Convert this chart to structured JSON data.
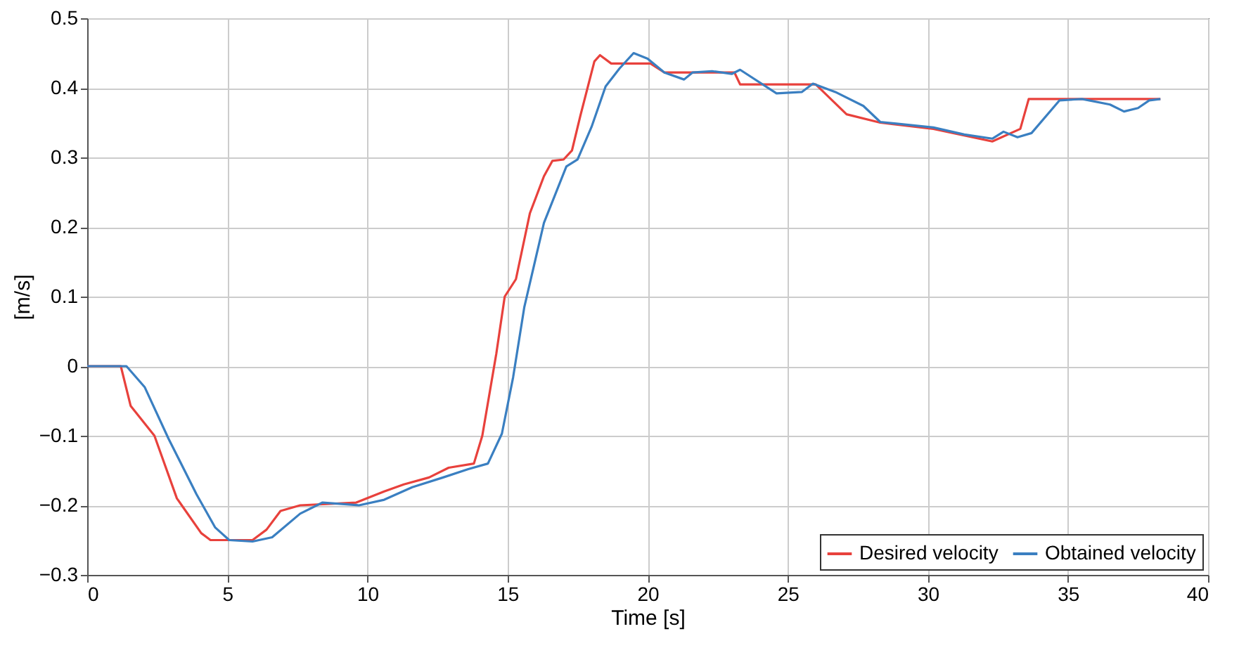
{
  "chart_data": {
    "type": "line",
    "xlabel": "Time [s]",
    "ylabel": "[m/s]",
    "xlim": [
      0,
      40
    ],
    "ylim": [
      -0.3,
      0.5
    ],
    "xticks": [
      0,
      5,
      10,
      15,
      20,
      25,
      30,
      35,
      40
    ],
    "yticks": [
      -0.3,
      -0.2,
      -0.1,
      0,
      0.1,
      0.2,
      0.3,
      0.4,
      0.5
    ],
    "grid": true,
    "legend": "bottom right",
    "line_style": "solid",
    "marker": "none",
    "series": [
      {
        "name": "Desired velocity",
        "color": "#e8413c",
        "x": [
          0,
          1.2,
          1.55,
          2.4,
          3.2,
          4.07,
          4.4,
          5.9,
          6.4,
          6.9,
          7.6,
          9.6,
          10.6,
          11.3,
          12.2,
          12.9,
          13.8,
          14.1,
          14.6,
          14.9,
          15.3,
          15.8,
          16.3,
          16.6,
          17.0,
          17.3,
          17.6,
          18.1,
          18.3,
          18.7,
          20.1,
          20.6,
          23.1,
          23.3,
          25.8,
          26.0,
          27.1,
          28.3,
          30.2,
          32.3,
          33.3,
          33.6,
          38.3
        ],
        "values": [
          0,
          0,
          -0.057,
          -0.1,
          -0.19,
          -0.24,
          -0.25,
          -0.25,
          -0.235,
          -0.208,
          -0.2,
          -0.196,
          -0.18,
          -0.17,
          -0.16,
          -0.146,
          -0.14,
          -0.1,
          0.018,
          0.1,
          0.125,
          0.22,
          0.273,
          0.295,
          0.297,
          0.31,
          0.36,
          0.438,
          0.447,
          0.435,
          0.435,
          0.422,
          0.422,
          0.405,
          0.405,
          0.405,
          0.362,
          0.35,
          0.341,
          0.323,
          0.341,
          0.384,
          0.384
        ]
      },
      {
        "name": "Obtained velocity",
        "color": "#3a7fc1",
        "x": [
          0,
          1.4,
          2.05,
          2.9,
          3.9,
          4.57,
          5.07,
          5.9,
          6.6,
          7.6,
          8.4,
          9.7,
          10.6,
          11.6,
          12.7,
          13.6,
          14.3,
          14.8,
          15.2,
          15.6,
          16.3,
          17.1,
          17.5,
          18.0,
          18.5,
          19.0,
          19.5,
          20.0,
          20.6,
          21.3,
          21.6,
          22.3,
          23.0,
          23.3,
          24.6,
          25.5,
          25.9,
          26.7,
          27.7,
          28.3,
          30.2,
          31.3,
          32.3,
          32.7,
          33.2,
          33.7,
          34.7,
          35.5,
          36.5,
          37.0,
          37.5,
          37.9,
          38.3
        ],
        "values": [
          0,
          0,
          -0.03,
          -0.104,
          -0.184,
          -0.232,
          -0.25,
          -0.252,
          -0.246,
          -0.212,
          -0.196,
          -0.2,
          -0.192,
          -0.174,
          -0.16,
          -0.148,
          -0.14,
          -0.097,
          -0.016,
          0.085,
          0.206,
          0.287,
          0.297,
          0.344,
          0.402,
          0.428,
          0.45,
          0.442,
          0.422,
          0.412,
          0.422,
          0.424,
          0.42,
          0.426,
          0.392,
          0.394,
          0.406,
          0.394,
          0.374,
          0.351,
          0.343,
          0.333,
          0.327,
          0.337,
          0.329,
          0.335,
          0.382,
          0.384,
          0.376,
          0.366,
          0.371,
          0.382,
          0.384
        ]
      }
    ]
  }
}
